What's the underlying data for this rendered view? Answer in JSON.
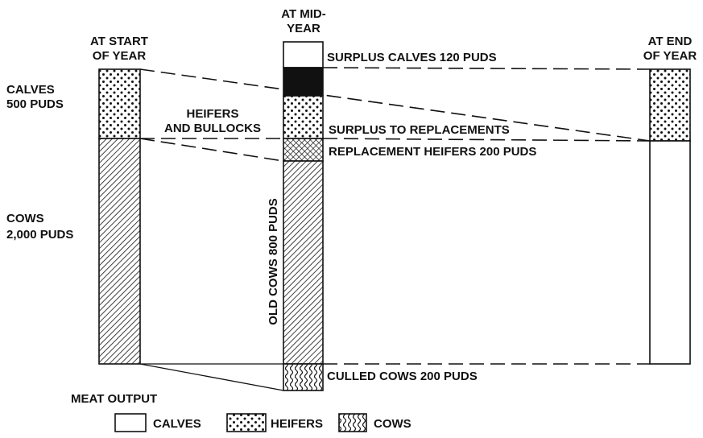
{
  "columns": {
    "start": {
      "lines": [
        "AT START",
        "OF YEAR"
      ]
    },
    "mid": {
      "lines": [
        "AT MID-",
        "YEAR"
      ]
    },
    "end": {
      "lines": [
        "AT END",
        "OF YEAR"
      ]
    }
  },
  "left_labels": {
    "calves": [
      "CALVES",
      "500 PUDS"
    ],
    "cows": [
      "COWS",
      "2,000 PUDS"
    ]
  },
  "heifers_label": [
    "HEIFERS",
    "AND BULLOCKS"
  ],
  "mid_labels": {
    "surplus_calves": "SURPLUS CALVES 120 PUDS",
    "surplus_replacements": "SURPLUS TO REPLACEMENTS",
    "replacement_heifers": "REPLACEMENT HEIFERS 200 PUDS",
    "old_cows": "OLD COWS 800 PUDS",
    "culled_cows": "CULLED COWS 200 PUDS"
  },
  "legend": {
    "title": "MEAT OUTPUT",
    "items": [
      "CALVES",
      "HEIFERS",
      "COWS"
    ]
  }
}
